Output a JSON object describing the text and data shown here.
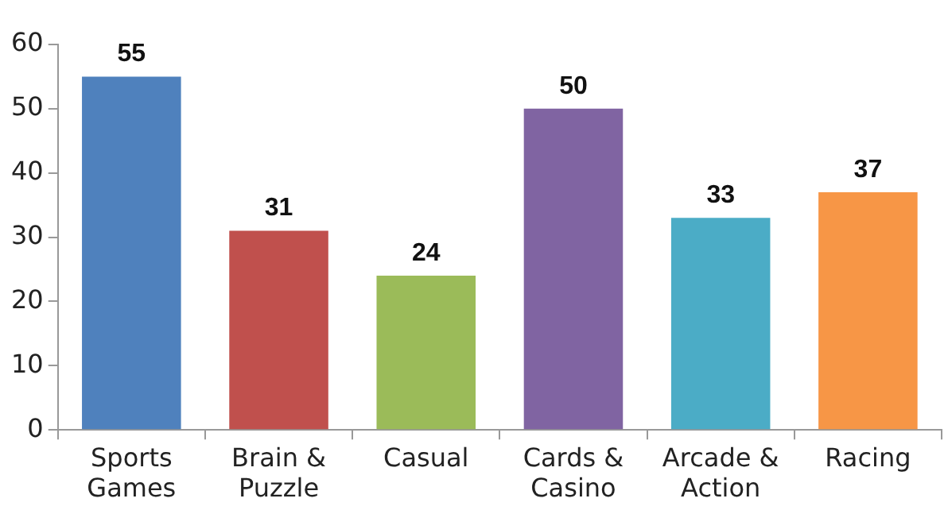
{
  "chart_data": {
    "type": "bar",
    "categories": [
      "Sports Games",
      "Brain & Puzzle",
      "Casual",
      "Cards & Casino",
      "Arcade & Action",
      "Racing"
    ],
    "values": [
      55,
      31,
      24,
      50,
      33,
      37
    ],
    "colors": [
      "#4f81bd",
      "#c0504d",
      "#9bbb59",
      "#8064a2",
      "#4bacc6",
      "#f79646"
    ],
    "ylim": [
      0,
      60
    ],
    "yticks": [
      0,
      10,
      20,
      30,
      40,
      50,
      60
    ],
    "grid": false,
    "data_labels": true,
    "legend": false
  }
}
